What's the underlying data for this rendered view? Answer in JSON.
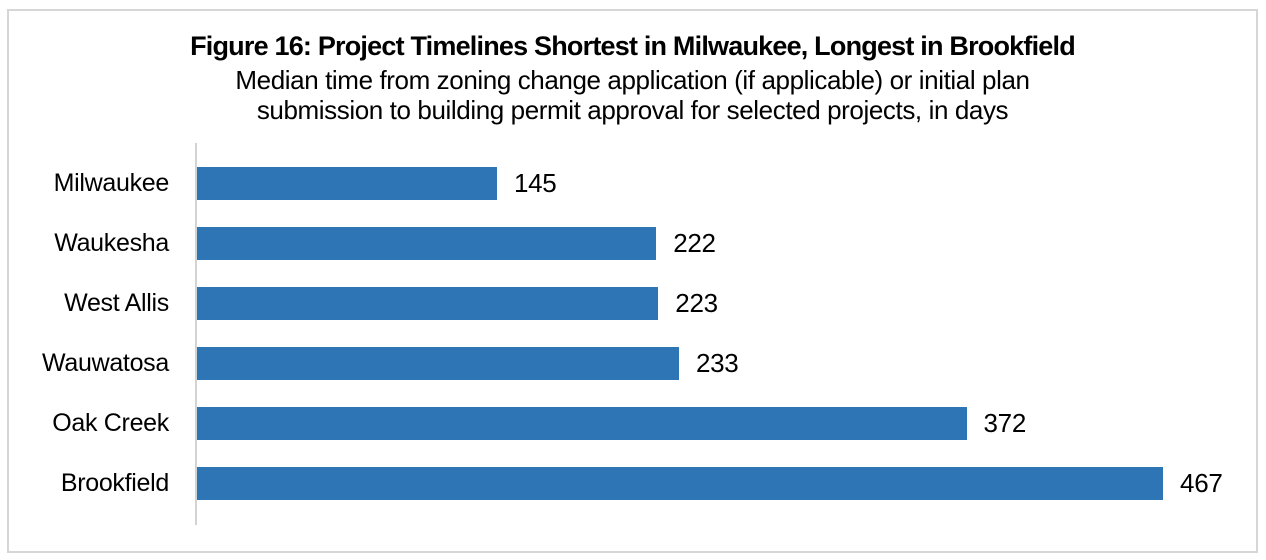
{
  "header": {
    "title": "Figure 16: Project Timelines Shortest in Milwaukee, Longest in Brookfield",
    "subtitle_line1": "Median time from zoning change application (if applicable) or initial plan",
    "subtitle_line2": "submission to building permit approval for selected projects, in days"
  },
  "chart_data": {
    "type": "bar",
    "orientation": "horizontal",
    "title": "Figure 16: Project Timelines Shortest in Milwaukee, Longest in Brookfield",
    "subtitle": "Median time from zoning change application (if applicable) or initial plan submission to building permit approval for selected projects, in days",
    "categories": [
      "Milwaukee",
      "Waukesha",
      "West Allis",
      "Wauwatosa",
      "Oak Creek",
      "Brookfield"
    ],
    "values": [
      145,
      222,
      223,
      233,
      372,
      467
    ],
    "xlabel": "",
    "ylabel": "",
    "xlim": [
      0,
      510
    ],
    "data_labels": true,
    "grid": false,
    "legend": false,
    "bar_color": "#2e75b6",
    "axis_color": "#d3d3d3",
    "frame_border_color": "#d6d6d6",
    "text_color": "#000000"
  }
}
